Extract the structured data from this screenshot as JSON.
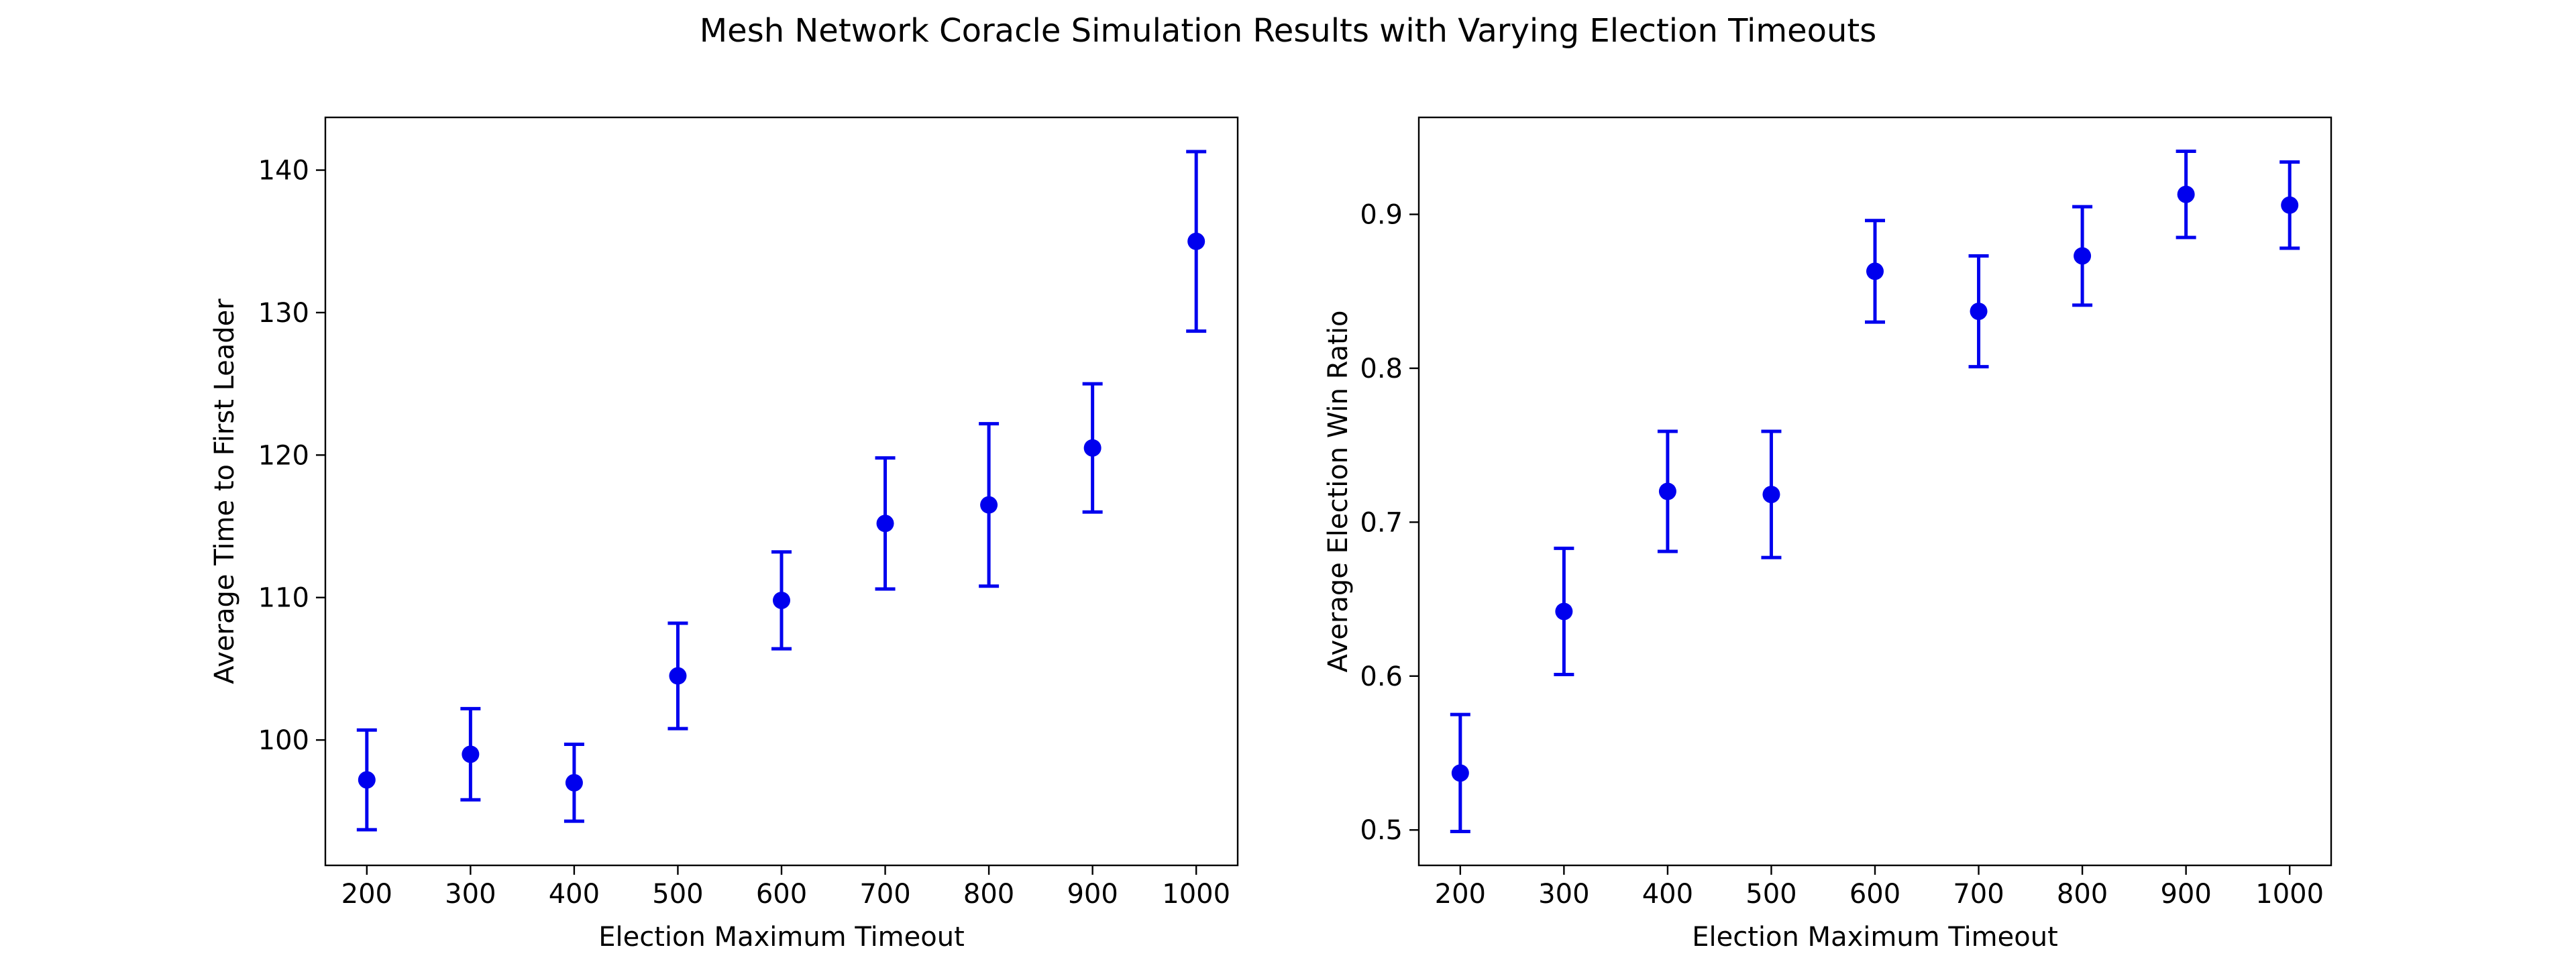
{
  "figure": {
    "title": "Mesh Network Coracle Simulation Results with Varying Election Timeouts"
  },
  "colors": {
    "marker": "#0000ee",
    "axis": "#000000",
    "background": "#ffffff"
  },
  "chart_data": [
    {
      "type": "scatter",
      "error_bars": true,
      "xlabel": "Election Maximum Timeout",
      "ylabel": "Average Time to First Leader",
      "x": [
        200,
        300,
        400,
        500,
        600,
        700,
        800,
        900,
        1000
      ],
      "y": [
        97.2,
        99.0,
        97.0,
        104.5,
        109.8,
        115.2,
        116.5,
        120.5,
        135.0
      ],
      "yerr": [
        3.5,
        3.2,
        2.7,
        3.7,
        3.4,
        4.6,
        5.7,
        4.5,
        6.3
      ],
      "xticks": [
        200,
        300,
        400,
        500,
        600,
        700,
        800,
        900,
        1000
      ],
      "yticks": [
        100,
        110,
        120,
        130,
        140
      ],
      "xlim": [
        160,
        1040
      ],
      "ylim": [
        91.2,
        143.7
      ],
      "grid": false,
      "legend": "none"
    },
    {
      "type": "scatter",
      "error_bars": true,
      "xlabel": "Election Maximum Timeout",
      "ylabel": "Average Election Win Ratio",
      "x": [
        200,
        300,
        400,
        500,
        600,
        700,
        800,
        900,
        1000
      ],
      "y": [
        0.537,
        0.642,
        0.72,
        0.718,
        0.863,
        0.837,
        0.873,
        0.913,
        0.906
      ],
      "yerr": [
        0.038,
        0.041,
        0.039,
        0.041,
        0.033,
        0.036,
        0.032,
        0.028,
        0.028
      ],
      "xticks": [
        200,
        300,
        400,
        500,
        600,
        700,
        800,
        900,
        1000
      ],
      "yticks": [
        0.5,
        0.6,
        0.7,
        0.8,
        0.9
      ],
      "xlim": [
        160,
        1040
      ],
      "ylim": [
        0.477,
        0.963
      ],
      "grid": false,
      "legend": "none"
    }
  ]
}
